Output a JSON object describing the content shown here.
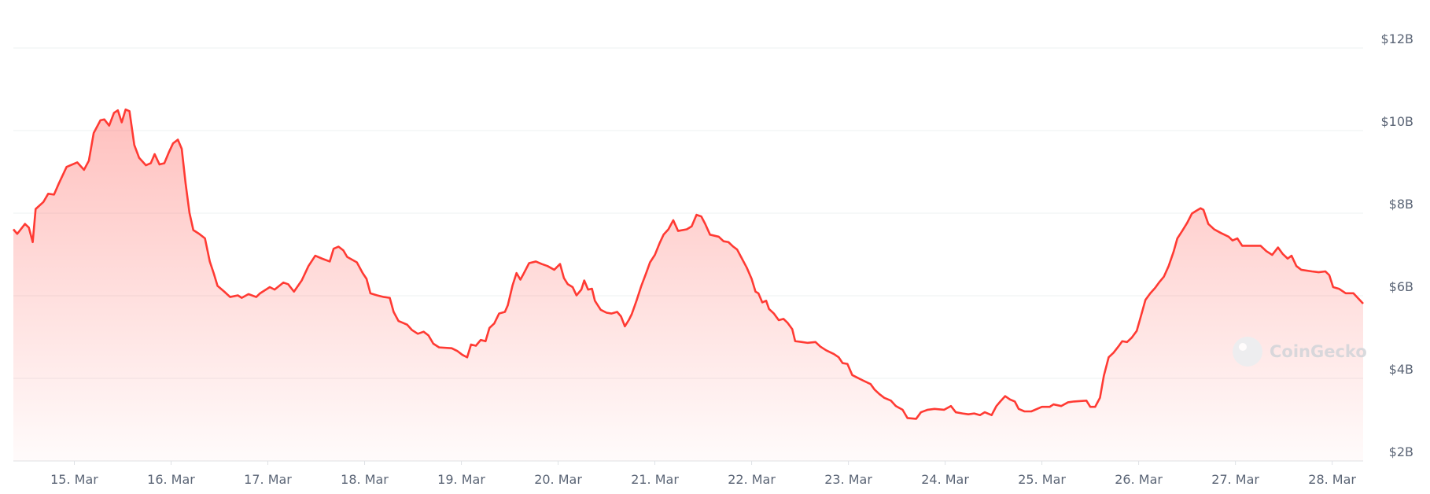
{
  "chart_data": {
    "type": "area",
    "watermark": "CoinGecko",
    "color": "#ff3a33",
    "grid": true,
    "xlim": [
      14.37,
      28.32
    ],
    "xticks": [
      {
        "value": 15,
        "label": "15. Mar"
      },
      {
        "value": 16,
        "label": "16. Mar"
      },
      {
        "value": 17,
        "label": "17. Mar"
      },
      {
        "value": 18,
        "label": "18. Mar"
      },
      {
        "value": 19,
        "label": "19. Mar"
      },
      {
        "value": 20,
        "label": "20. Mar"
      },
      {
        "value": 21,
        "label": "21. Mar"
      },
      {
        "value": 22,
        "label": "22. Mar"
      },
      {
        "value": 23,
        "label": "23. Mar"
      },
      {
        "value": 24,
        "label": "24. Mar"
      },
      {
        "value": 25,
        "label": "25. Mar"
      },
      {
        "value": 26,
        "label": "26. Mar"
      },
      {
        "value": 27,
        "label": "27. Mar"
      },
      {
        "value": 28,
        "label": "28. Mar"
      }
    ],
    "ylim": [
      2,
      12
    ],
    "yticks": [
      {
        "value": 2,
        "label": "$2B"
      },
      {
        "value": 4,
        "label": "$4B"
      },
      {
        "value": 6,
        "label": "$6B"
      },
      {
        "value": 8,
        "label": "$8B"
      },
      {
        "value": 10,
        "label": "$10B"
      },
      {
        "value": 12,
        "label": "$12B"
      }
    ],
    "x": [
      14.37,
      14.41,
      14.49,
      14.53,
      14.57,
      14.6,
      14.68,
      14.73,
      14.79,
      14.84,
      14.92,
      15.03,
      15.1,
      15.15,
      15.2,
      15.27,
      15.31,
      15.36,
      15.41,
      15.45,
      15.49,
      15.53,
      15.57,
      15.62,
      15.67,
      15.74,
      15.79,
      15.83,
      15.88,
      15.93,
      15.98,
      16.02,
      16.07,
      16.11,
      16.15,
      16.19,
      16.23,
      16.29,
      16.35,
      16.4,
      16.44,
      16.48,
      16.55,
      16.61,
      16.69,
      16.73,
      16.8,
      16.88,
      16.92,
      17.02,
      17.07,
      17.16,
      17.21,
      17.27,
      17.35,
      17.42,
      17.49,
      17.56,
      17.64,
      17.68,
      17.73,
      17.78,
      17.82,
      17.92,
      17.98,
      18.02,
      18.06,
      18.13,
      18.2,
      18.26,
      18.3,
      18.35,
      18.44,
      18.49,
      18.55,
      18.61,
      18.66,
      18.71,
      18.77,
      18.9,
      18.96,
      19.01,
      19.06,
      19.1,
      19.15,
      19.2,
      19.25,
      19.29,
      19.34,
      19.39,
      19.45,
      19.48,
      19.53,
      19.57,
      19.61,
      19.64,
      19.7,
      19.77,
      19.83,
      19.89,
      19.96,
      20.02,
      20.06,
      20.1,
      20.15,
      20.19,
      20.24,
      20.27,
      20.31,
      20.35,
      20.38,
      20.44,
      20.5,
      20.55,
      20.61,
      20.65,
      20.69,
      20.73,
      20.76,
      20.81,
      20.86,
      20.91,
      20.95,
      21.0,
      21.05,
      21.09,
      21.14,
      21.19,
      21.24,
      21.33,
      21.38,
      21.43,
      21.48,
      21.52,
      21.57,
      21.66,
      21.71,
      21.76,
      21.81,
      21.85,
      21.9,
      21.95,
      22.0,
      22.04,
      22.07,
      22.11,
      22.15,
      22.18,
      22.23,
      22.28,
      22.33,
      22.37,
      22.42,
      22.45,
      22.52,
      22.58,
      22.66,
      22.71,
      22.77,
      22.85,
      22.9,
      22.94,
      22.99,
      23.04,
      23.09,
      23.15,
      23.23,
      23.27,
      23.32,
      23.37,
      23.44,
      23.49,
      23.56,
      23.61,
      23.7,
      23.75,
      23.82,
      23.89,
      23.99,
      24.06,
      24.11,
      24.18,
      24.24,
      24.3,
      24.36,
      24.41,
      24.48,
      24.53,
      24.57,
      24.62,
      24.67,
      24.72,
      24.76,
      24.82,
      24.89,
      25.0,
      25.08,
      25.12,
      25.2,
      25.27,
      25.33,
      25.46,
      25.5,
      25.55,
      25.6,
      25.64,
      25.69,
      25.74,
      25.79,
      25.83,
      25.88,
      25.93,
      25.98,
      26.02,
      26.07,
      26.12,
      26.17,
      26.21,
      26.26,
      26.31,
      26.36,
      26.4,
      26.45,
      26.5,
      26.55,
      26.59,
      26.64,
      26.67,
      26.72,
      26.78,
      26.85,
      26.93,
      26.97,
      27.02,
      27.07,
      27.26,
      27.32,
      27.38,
      27.44,
      27.49,
      27.54,
      27.58,
      27.63,
      27.68,
      27.79,
      27.86,
      27.93,
      27.97,
      28.01,
      28.07,
      28.14,
      28.22,
      28.32
    ],
    "values": [
      7.61,
      7.5,
      7.74,
      7.65,
      7.3,
      8.1,
      8.27,
      8.47,
      8.45,
      8.72,
      9.12,
      9.23,
      9.05,
      9.27,
      9.94,
      10.25,
      10.27,
      10.12,
      10.43,
      10.49,
      10.2,
      10.51,
      10.47,
      9.65,
      9.34,
      9.16,
      9.21,
      9.43,
      9.18,
      9.21,
      9.49,
      9.69,
      9.78,
      9.56,
      8.72,
      8.01,
      7.59,
      7.5,
      7.39,
      6.83,
      6.55,
      6.24,
      6.1,
      5.97,
      6.01,
      5.95,
      6.04,
      5.97,
      6.06,
      6.21,
      6.15,
      6.32,
      6.28,
      6.1,
      6.37,
      6.72,
      6.97,
      6.9,
      6.83,
      7.14,
      7.19,
      7.1,
      6.94,
      6.81,
      6.55,
      6.41,
      6.06,
      6.01,
      5.97,
      5.95,
      5.61,
      5.39,
      5.3,
      5.17,
      5.08,
      5.13,
      5.04,
      4.84,
      4.75,
      4.73,
      4.66,
      4.57,
      4.51,
      4.82,
      4.79,
      4.93,
      4.9,
      5.22,
      5.33,
      5.57,
      5.61,
      5.77,
      6.26,
      6.55,
      6.39,
      6.52,
      6.79,
      6.83,
      6.77,
      6.72,
      6.63,
      6.77,
      6.43,
      6.28,
      6.21,
      6.01,
      6.15,
      6.37,
      6.15,
      6.17,
      5.88,
      5.66,
      5.59,
      5.57,
      5.61,
      5.5,
      5.26,
      5.41,
      5.55,
      5.88,
      6.24,
      6.55,
      6.81,
      6.99,
      7.28,
      7.48,
      7.61,
      7.83,
      7.57,
      7.61,
      7.68,
      7.96,
      7.92,
      7.74,
      7.48,
      7.43,
      7.32,
      7.3,
      7.19,
      7.12,
      6.9,
      6.68,
      6.41,
      6.1,
      6.06,
      5.84,
      5.88,
      5.68,
      5.57,
      5.41,
      5.44,
      5.35,
      5.19,
      4.9,
      4.88,
      4.86,
      4.88,
      4.77,
      4.68,
      4.59,
      4.51,
      4.37,
      4.35,
      4.08,
      4.02,
      3.95,
      3.86,
      3.73,
      3.62,
      3.53,
      3.46,
      3.33,
      3.24,
      3.04,
      3.02,
      3.18,
      3.24,
      3.26,
      3.24,
      3.33,
      3.18,
      3.15,
      3.13,
      3.15,
      3.11,
      3.18,
      3.11,
      3.33,
      3.44,
      3.57,
      3.49,
      3.44,
      3.26,
      3.2,
      3.2,
      3.31,
      3.31,
      3.37,
      3.33,
      3.42,
      3.44,
      3.46,
      3.31,
      3.31,
      3.53,
      4.06,
      4.51,
      4.62,
      4.77,
      4.9,
      4.88,
      4.99,
      5.15,
      5.48,
      5.9,
      6.06,
      6.19,
      6.32,
      6.46,
      6.72,
      7.06,
      7.39,
      7.57,
      7.76,
      7.99,
      8.05,
      8.12,
      8.08,
      7.74,
      7.61,
      7.52,
      7.43,
      7.34,
      7.39,
      7.21,
      7.21,
      7.08,
      6.99,
      7.17,
      7.01,
      6.9,
      6.97,
      6.72,
      6.63,
      6.59,
      6.57,
      6.59,
      6.5,
      6.21,
      6.17,
      6.06,
      6.06,
      5.81
    ]
  }
}
